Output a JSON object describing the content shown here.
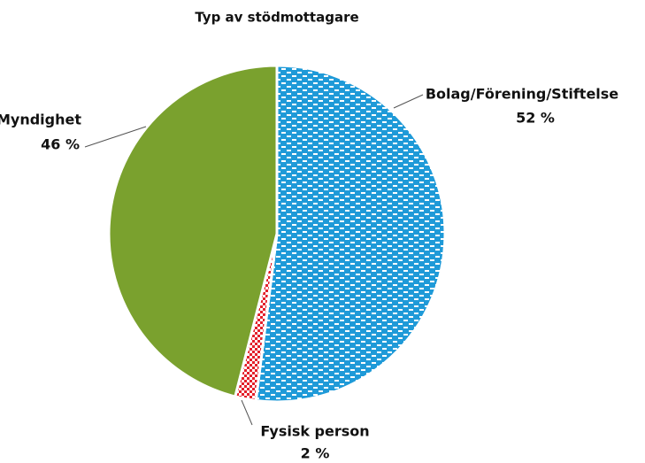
{
  "chart_data": {
    "type": "pie",
    "title": "Typ av stödmottagare",
    "categories": [
      "Bolag/Förening/Stiftelse",
      "Fysisk person",
      "Myndighet"
    ],
    "values": [
      52,
      2,
      46
    ],
    "value_labels": [
      "52 %",
      "2 %",
      "46 %"
    ],
    "colors": [
      "#1f9ad8",
      "#e3202a",
      "#7aa12e"
    ]
  }
}
